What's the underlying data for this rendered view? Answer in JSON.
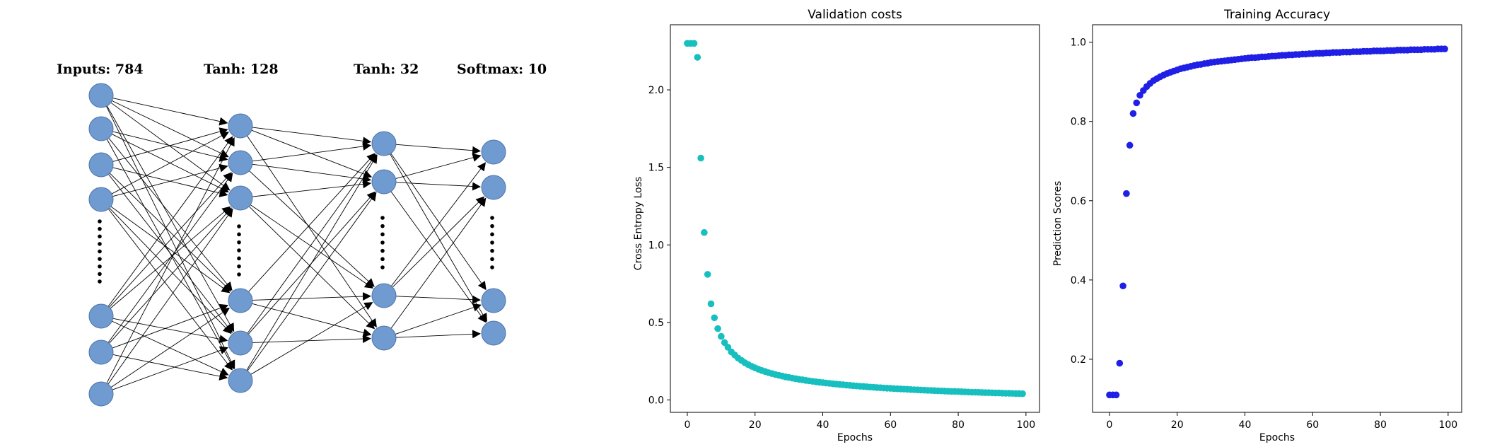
{
  "network": {
    "layers": [
      {
        "label": "Inputs: 784",
        "top_nodes": 4,
        "bottom_nodes": 3,
        "dots": 9
      },
      {
        "label": "Tanh: 128",
        "top_nodes": 3,
        "bottom_nodes": 3,
        "dots": 7
      },
      {
        "label": "Tanh: 32",
        "top_nodes": 2,
        "bottom_nodes": 2,
        "dots": 7
      },
      {
        "label": "Softmax: 10",
        "top_nodes": 2,
        "bottom_nodes": 2,
        "dots": 7
      }
    ],
    "colors": {
      "node_fill": "#6f9bd1",
      "node_stroke": "#4f74a8",
      "edge": "#000000"
    }
  },
  "chart_data": [
    {
      "type": "scatter",
      "title": "Validation costs",
      "xlabel": "Epochs",
      "ylabel": "Cross Entropy Loss",
      "xlim": [
        -5,
        104
      ],
      "ylim": [
        -0.08,
        2.42
      ],
      "xticks": [
        0,
        20,
        40,
        60,
        80,
        100
      ],
      "yticks": [
        0.0,
        0.5,
        1.0,
        1.5,
        2.0
      ],
      "ytick_labels": [
        "0.0",
        "0.5",
        "1.0",
        "1.5",
        "2.0"
      ],
      "color": "#17bfbf",
      "grid": false,
      "series": [
        {
          "x": [
            0,
            1,
            2,
            3,
            4,
            5,
            6,
            7,
            8,
            9,
            10,
            11,
            12,
            13,
            14,
            15,
            16,
            17,
            18,
            19,
            20,
            21,
            22,
            23,
            24,
            25,
            26,
            27,
            28,
            29,
            30,
            31,
            32,
            33,
            34,
            35,
            36,
            37,
            38,
            39,
            40,
            41,
            42,
            43,
            44,
            45,
            46,
            47,
            48,
            49,
            50,
            51,
            52,
            53,
            54,
            55,
            56,
            57,
            58,
            59,
            60,
            61,
            62,
            63,
            64,
            65,
            66,
            67,
            68,
            69,
            70,
            71,
            72,
            73,
            74,
            75,
            76,
            77,
            78,
            79,
            80,
            81,
            82,
            83,
            84,
            85,
            86,
            87,
            88,
            89,
            90,
            91,
            92,
            93,
            94,
            95,
            96,
            97,
            98,
            99
          ],
          "y": [
            2.3,
            2.3,
            2.3,
            2.21,
            1.56,
            1.08,
            0.81,
            0.62,
            0.53,
            0.46,
            0.41,
            0.37,
            0.34,
            0.31,
            0.29,
            0.27,
            0.255,
            0.24,
            0.228,
            0.217,
            0.207,
            0.198,
            0.19,
            0.183,
            0.176,
            0.17,
            0.164,
            0.159,
            0.154,
            0.149,
            0.145,
            0.141,
            0.137,
            0.133,
            0.13,
            0.126,
            0.123,
            0.12,
            0.117,
            0.114,
            0.112,
            0.109,
            0.107,
            0.104,
            0.102,
            0.1,
            0.098,
            0.096,
            0.094,
            0.092,
            0.09,
            0.088,
            0.087,
            0.085,
            0.083,
            0.082,
            0.08,
            0.079,
            0.077,
            0.076,
            0.075,
            0.073,
            0.072,
            0.071,
            0.07,
            0.069,
            0.067,
            0.066,
            0.065,
            0.064,
            0.063,
            0.062,
            0.061,
            0.06,
            0.059,
            0.058,
            0.057,
            0.056,
            0.055,
            0.055,
            0.054,
            0.053,
            0.052,
            0.051,
            0.05,
            0.05,
            0.049,
            0.048,
            0.047,
            0.047,
            0.046,
            0.045,
            0.045,
            0.044,
            0.043,
            0.043,
            0.042,
            0.041,
            0.041,
            0.04
          ]
        }
      ]
    },
    {
      "type": "scatter",
      "title": "Training Accuracy",
      "xlabel": "Epochs",
      "ylabel": "Prediction Scores",
      "xlim": [
        -5,
        104
      ],
      "ylim": [
        0.066,
        1.044
      ],
      "xticks": [
        0,
        20,
        40,
        60,
        80,
        100
      ],
      "yticks": [
        0.2,
        0.4,
        0.6,
        0.8,
        1.0
      ],
      "ytick_labels": [
        "0.2",
        "0.4",
        "0.6",
        "0.8",
        "1.0"
      ],
      "color": "#1f1fe6",
      "grid": false,
      "series": [
        {
          "x": [
            0,
            1,
            2,
            3,
            4,
            5,
            6,
            7,
            8,
            9,
            10,
            11,
            12,
            13,
            14,
            15,
            16,
            17,
            18,
            19,
            20,
            21,
            22,
            23,
            24,
            25,
            26,
            27,
            28,
            29,
            30,
            31,
            32,
            33,
            34,
            35,
            36,
            37,
            38,
            39,
            40,
            41,
            42,
            43,
            44,
            45,
            46,
            47,
            48,
            49,
            50,
            51,
            52,
            53,
            54,
            55,
            56,
            57,
            58,
            59,
            60,
            61,
            62,
            63,
            64,
            65,
            66,
            67,
            68,
            69,
            70,
            71,
            72,
            73,
            74,
            75,
            76,
            77,
            78,
            79,
            80,
            81,
            82,
            83,
            84,
            85,
            86,
            87,
            88,
            89,
            90,
            91,
            92,
            93,
            94,
            95,
            96,
            97,
            98,
            99
          ],
          "y": [
            0.11,
            0.11,
            0.11,
            0.19,
            0.385,
            0.618,
            0.74,
            0.82,
            0.847,
            0.866,
            0.878,
            0.888,
            0.896,
            0.903,
            0.908,
            0.913,
            0.917,
            0.921,
            0.924,
            0.927,
            0.93,
            0.933,
            0.935,
            0.937,
            0.939,
            0.941,
            0.943,
            0.944,
            0.946,
            0.947,
            0.949,
            0.95,
            0.951,
            0.952,
            0.953,
            0.954,
            0.955,
            0.956,
            0.957,
            0.958,
            0.959,
            0.96,
            0.961,
            0.961,
            0.962,
            0.963,
            0.963,
            0.964,
            0.965,
            0.965,
            0.966,
            0.967,
            0.967,
            0.968,
            0.968,
            0.969,
            0.969,
            0.97,
            0.97,
            0.971,
            0.971,
            0.972,
            0.972,
            0.972,
            0.973,
            0.973,
            0.974,
            0.974,
            0.974,
            0.975,
            0.975,
            0.975,
            0.976,
            0.976,
            0.976,
            0.977,
            0.977,
            0.977,
            0.978,
            0.978,
            0.978,
            0.978,
            0.979,
            0.979,
            0.979,
            0.98,
            0.98,
            0.98,
            0.98,
            0.981,
            0.981,
            0.981,
            0.981,
            0.982,
            0.982,
            0.982,
            0.982,
            0.983,
            0.983,
            0.983
          ]
        }
      ]
    }
  ]
}
